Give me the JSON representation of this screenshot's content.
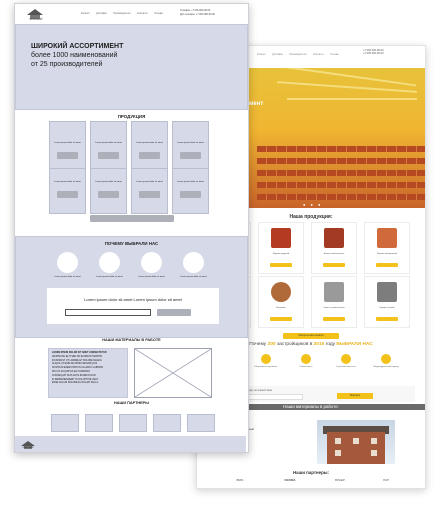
{
  "wireframe": {
    "logo": "КРАСНЫЙ",
    "menu": [
      "Каталог",
      "Доставка",
      "Производители",
      "Контакты",
      "Отзывы"
    ],
    "phones": [
      "Телефон: +7 000 000-00-00",
      "Доп.телефон: +7 000 000-00-00"
    ],
    "hero": {
      "title": "ШИРОКИЙ АССОРТИМЕНТ",
      "line2": "более 1000 наименований",
      "line3": "от 25 производителей"
    },
    "products_title": "ПРОДУКЦИЯ",
    "card_text": "Lorem ipsum dolor sit amet",
    "why_title": "ПОЧЕМУ ВЫБРАЛИ НАС",
    "why_items": [
      "Lorem ipsum dolor sit amet",
      "Lorem ipsum dolor sit amet",
      "Lorem ipsum dolor sit amet",
      "Lorem ipsum dolor sit amet"
    ],
    "subscribe_text": "Lorem ipsum dolor sit amet Lorem ipsum dolor sit amet",
    "works_title": "НАШИ МАТЕРИАЛЫ В РАБОТЕ",
    "works_list": [
      "LOREM IPSUM DOLOR SIT AMET CONSECTETUR",
      "ADIPISCING ELIT SED DO EIUSMOD TEMPOR",
      "INCIDIDUNT UT LABORE ET DOLORE MAGNA",
      "ALIQUA UT ENIM AD MINIM VENIAM QUIS",
      "NOSTRUD EXERCITATION ULLAMCO LABORIS",
      "NISI UT ALIQUIP EX EA COMMODO",
      "CONSEQUAT DUIS AUTE IRURE DOLOR",
      "IN REPREHENDERIT IN VOLUPTATE VELIT",
      "ESSE CILLUM DOLORE EU FUGIAT NULLA"
    ],
    "partners_title": "НАШИ ПАРТНЕРЫ",
    "footer_logo": "КРАСНЫЙ"
  },
  "design": {
    "menu": [
      "Каталог",
      "Доставка",
      "Производители",
      "Контакты",
      "Отзывы"
    ],
    "phones": [
      "+7 000 000-00-00",
      "+7 000 000-00-00"
    ],
    "hero": {
      "title": "широкий ассортимент",
      "line2": "более 1000 наименований",
      "line3": "от 25 производителей"
    },
    "products_title": "Наша продукция:",
    "products": [
      "Кирпич облицовочный",
      "Кирпич рядовой",
      "Блоки газобетонные",
      "Кирпич клинкерный",
      "Плитка тротуарная",
      "Керамзит",
      "Смеси строительные",
      "Кирпич печной"
    ],
    "product_button": "Подробнее",
    "all_button": "Смотреть весь каталог",
    "why_title_pre": "Почему",
    "why_highlight": "200",
    "why_title_mid": "застройщиков в",
    "why_year": "2015",
    "why_title_post": "году",
    "why_title_end": "ВЫБРАЛИ НАС",
    "why_items": [
      "Доставка в срок",
      "Широкий ассортимент",
      "Гибкие цены",
      "Гарантия качества",
      "Индивидуальный подход"
    ],
    "subscribe_text": "Введите ваш e-mail и получите скидку на первый заказ",
    "subscribe_button": "Получить",
    "works_title": "Наши материалы в работе:",
    "works_list": [
      "Объект: частный жилой дом",
      "Материал: кирпич облицовочный",
      "Объект: коттедж",
      "Материал: газобетон D500"
    ],
    "partners_title": "Наши партнеры:",
    "partners": [
      "BRIK",
      "KERMA",
      "БРАЕР",
      "ЛСР"
    ]
  },
  "colors": {
    "accent": "#f2c21b",
    "wire_fill": "#d5d9e8",
    "wire_button": "#adb0b8"
  }
}
